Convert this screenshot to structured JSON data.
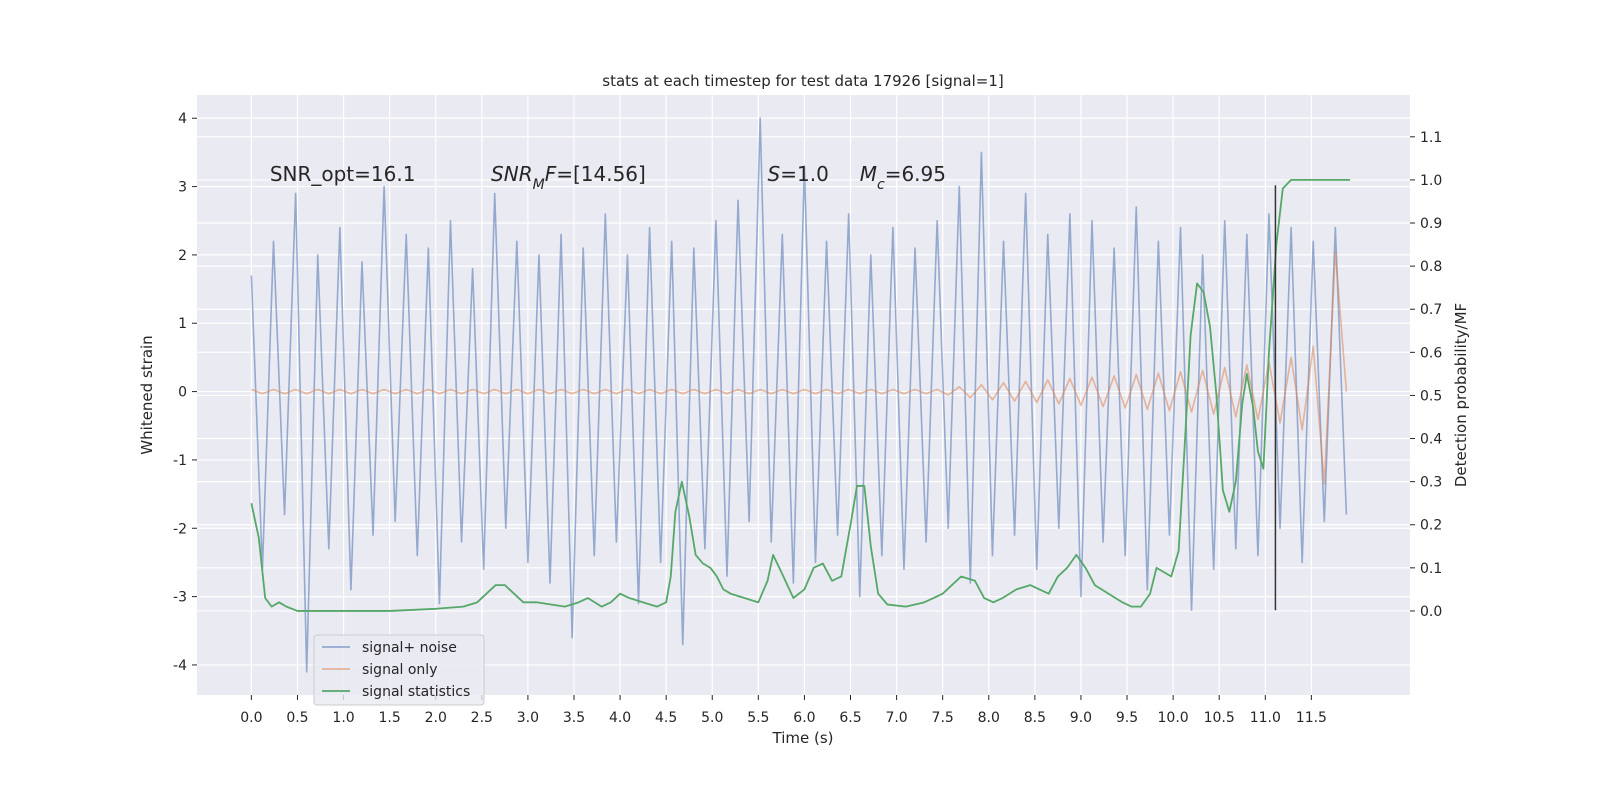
{
  "chart_data": {
    "type": "line",
    "title": "stats at each timestep for test data 17926 [signal=1]",
    "xlabel": "Time (s)",
    "ylabel": "Whitened strain",
    "y2label": "Detection probability/MF",
    "grid": true,
    "legend": "lower left",
    "xlim": [
      -0.59,
      12.57
    ],
    "ylim": [
      -4.44,
      4.34
    ],
    "y2lim": [
      -0.195,
      1.197
    ],
    "xticks": [
      {
        "value": 0,
        "label": "0.0"
      },
      {
        "value": 0.5,
        "label": "0.5"
      },
      {
        "value": 1,
        "label": "1.0"
      },
      {
        "value": 1.5,
        "label": "1.5"
      },
      {
        "value": 2,
        "label": "2.0"
      },
      {
        "value": 2.5,
        "label": "2.5"
      },
      {
        "value": 3,
        "label": "3.0"
      },
      {
        "value": 3.5,
        "label": "3.5"
      },
      {
        "value": 4,
        "label": "4.0"
      },
      {
        "value": 4.5,
        "label": "4.5"
      },
      {
        "value": 5,
        "label": "5.0"
      },
      {
        "value": 5.5,
        "label": "5.5"
      },
      {
        "value": 6,
        "label": "6.0"
      },
      {
        "value": 6.5,
        "label": "6.5"
      },
      {
        "value": 7,
        "label": "7.0"
      },
      {
        "value": 7.5,
        "label": "7.5"
      },
      {
        "value": 8,
        "label": "8.0"
      },
      {
        "value": 8.5,
        "label": "8.5"
      },
      {
        "value": 9,
        "label": "9.0"
      },
      {
        "value": 9.5,
        "label": "9.5"
      },
      {
        "value": 10,
        "label": "10.0"
      },
      {
        "value": 10.5,
        "label": "10.5"
      },
      {
        "value": 11,
        "label": "11.0"
      },
      {
        "value": 11.5,
        "label": "11.5"
      }
    ],
    "yticks": [
      -4,
      -3,
      -2,
      -1,
      0,
      1,
      2,
      3,
      4
    ],
    "y2ticks": [
      {
        "value": 0,
        "label": "0.0"
      },
      0.1,
      0.2,
      0.3,
      0.4,
      0.5,
      0.6,
      0.7,
      0.8,
      0.9,
      {
        "value": 1,
        "label": "1.0"
      },
      1.1
    ],
    "x": [
      0,
      0.12,
      0.24,
      0.36,
      0.48,
      0.6,
      0.72,
      0.84,
      0.96,
      1.08,
      1.2,
      1.32,
      1.44,
      1.56,
      1.68,
      1.8,
      1.92,
      2.04,
      2.16,
      2.28,
      2.4,
      2.52,
      2.64,
      2.76,
      2.88,
      3,
      3.12,
      3.24,
      3.36,
      3.48,
      3.6,
      3.72,
      3.84,
      3.96,
      4.08,
      4.2,
      4.32,
      4.44,
      4.56,
      4.68,
      4.8,
      4.92,
      5.04,
      5.16,
      5.28,
      5.4,
      5.52,
      5.64,
      5.76,
      5.88,
      6,
      6.12,
      6.24,
      6.36,
      6.48,
      6.6,
      6.72,
      6.84,
      6.96,
      7.08,
      7.2,
      7.32,
      7.44,
      7.56,
      7.68,
      7.8,
      7.92,
      8.04,
      8.16,
      8.28,
      8.4,
      8.52,
      8.64,
      8.76,
      8.88,
      9,
      9.12,
      9.24,
      9.36,
      9.48,
      9.6,
      9.72,
      9.84,
      9.96,
      10.08,
      10.2,
      10.32,
      10.44,
      10.56,
      10.68,
      10.8,
      10.92,
      11.04,
      11.16,
      11.28,
      11.4,
      11.52,
      11.64,
      11.76,
      11.88
    ],
    "series": [
      {
        "name": "signal+ noise",
        "color": "#4c72b0",
        "values": [
          1.7,
          -2.6,
          2.2,
          -1.8,
          2.9,
          -4.1,
          2.0,
          -2.3,
          2.4,
          -2.9,
          1.9,
          -2.1,
          3.0,
          -1.9,
          2.3,
          -2.4,
          2.1,
          -3.1,
          2.5,
          -2.2,
          1.8,
          -2.6,
          2.9,
          -2.0,
          2.2,
          -2.5,
          2.0,
          -2.8,
          2.3,
          -3.6,
          2.1,
          -2.4,
          2.6,
          -2.2,
          2.0,
          -3.1,
          2.4,
          -2.5,
          2.2,
          -3.7,
          2.1,
          -2.3,
          2.5,
          -2.7,
          2.8,
          -1.9,
          4.0,
          -2.2,
          2.3,
          -2.8,
          3.3,
          -2.5,
          2.2,
          -2.1,
          2.6,
          -3.0,
          2.0,
          -2.4,
          2.4,
          -2.6,
          2.1,
          -2.2,
          2.5,
          -2.0,
          3.0,
          -2.8,
          3.5,
          -2.4,
          2.2,
          -2.1,
          2.9,
          -2.6,
          2.3,
          -2.0,
          2.6,
          -3.0,
          2.5,
          -2.2,
          2.1,
          -2.4,
          2.7,
          -2.9,
          2.2,
          -2.1,
          2.4,
          -3.2,
          2.0,
          -2.6,
          2.5,
          -2.3,
          2.3,
          -2.4,
          2.6,
          -2.0,
          2.4,
          -2.5,
          2.2,
          -1.9,
          2.4,
          -1.8
        ]
      },
      {
        "name": "signal only",
        "color": "#dd8452",
        "values": [
          0.03,
          -0.03,
          0.03,
          -0.03,
          0.03,
          -0.03,
          0.03,
          -0.03,
          0.03,
          -0.03,
          0.03,
          -0.03,
          0.03,
          -0.03,
          0.03,
          -0.03,
          0.03,
          -0.03,
          0.03,
          -0.03,
          0.03,
          -0.03,
          0.03,
          -0.03,
          0.03,
          -0.03,
          0.03,
          -0.03,
          0.03,
          -0.03,
          0.03,
          -0.03,
          0.03,
          -0.03,
          0.03,
          -0.03,
          0.03,
          -0.03,
          0.03,
          -0.03,
          0.03,
          -0.03,
          0.03,
          -0.03,
          0.03,
          -0.03,
          0.03,
          -0.03,
          0.03,
          -0.03,
          0.03,
          -0.03,
          0.03,
          -0.03,
          0.03,
          -0.03,
          0.03,
          -0.03,
          0.03,
          -0.03,
          0.03,
          -0.03,
          0.03,
          -0.05,
          0.07,
          -0.09,
          0.1,
          -0.12,
          0.13,
          -0.14,
          0.15,
          -0.16,
          0.17,
          -0.18,
          0.19,
          -0.2,
          0.21,
          -0.22,
          0.23,
          -0.24,
          0.25,
          -0.26,
          0.27,
          -0.28,
          0.29,
          -0.3,
          0.31,
          -0.33,
          0.35,
          -0.37,
          0.39,
          -0.41,
          0.43,
          -0.46,
          0.5,
          -0.56,
          0.66,
          -1.35,
          2.05,
          0
        ]
      },
      {
        "name": "signal statistics",
        "color": "#55a868",
        "axis": "y2",
        "x": [
          0,
          0.08,
          0.15,
          0.22,
          0.3,
          0.38,
          0.5,
          0.7,
          1.0,
          1.5,
          2.0,
          2.3,
          2.45,
          2.55,
          2.65,
          2.75,
          2.85,
          2.95,
          3.1,
          3.4,
          3.55,
          3.65,
          3.8,
          3.9,
          4.0,
          4.1,
          4.25,
          4.4,
          4.5,
          4.55,
          4.6,
          4.67,
          4.75,
          4.82,
          4.9,
          4.98,
          5.05,
          5.12,
          5.2,
          5.35,
          5.5,
          5.6,
          5.66,
          5.75,
          5.88,
          6.0,
          6.1,
          6.2,
          6.3,
          6.4,
          6.5,
          6.57,
          6.65,
          6.72,
          6.8,
          6.9,
          7.1,
          7.3,
          7.4,
          7.5,
          7.7,
          7.85,
          7.95,
          8.05,
          8.15,
          8.3,
          8.45,
          8.55,
          8.65,
          8.75,
          8.85,
          8.95,
          9.05,
          9.15,
          9.3,
          9.45,
          9.55,
          9.65,
          9.75,
          9.82,
          9.9,
          9.98,
          10.06,
          10.13,
          10.19,
          10.26,
          10.33,
          10.4,
          10.47,
          10.54,
          10.61,
          10.68,
          10.75,
          10.8,
          10.87,
          10.92,
          10.98,
          11.04,
          11.12,
          11.19,
          11.28,
          11.5,
          11.92
        ],
        "values": [
          0.25,
          0.17,
          0.03,
          0.01,
          0.02,
          0.01,
          0.0,
          0.0,
          0.0,
          0.0,
          0.005,
          0.01,
          0.02,
          0.04,
          0.06,
          0.06,
          0.04,
          0.02,
          0.02,
          0.01,
          0.02,
          0.03,
          0.01,
          0.02,
          0.04,
          0.03,
          0.02,
          0.01,
          0.02,
          0.08,
          0.23,
          0.3,
          0.22,
          0.13,
          0.11,
          0.1,
          0.08,
          0.05,
          0.04,
          0.03,
          0.02,
          0.07,
          0.13,
          0.09,
          0.03,
          0.05,
          0.1,
          0.11,
          0.07,
          0.08,
          0.2,
          0.29,
          0.29,
          0.15,
          0.04,
          0.015,
          0.01,
          0.02,
          0.03,
          0.04,
          0.08,
          0.07,
          0.03,
          0.02,
          0.03,
          0.05,
          0.06,
          0.05,
          0.04,
          0.08,
          0.1,
          0.13,
          0.1,
          0.06,
          0.04,
          0.02,
          0.01,
          0.01,
          0.04,
          0.1,
          0.09,
          0.08,
          0.14,
          0.4,
          0.64,
          0.76,
          0.74,
          0.66,
          0.5,
          0.28,
          0.23,
          0.3,
          0.48,
          0.55,
          0.47,
          0.37,
          0.33,
          0.6,
          0.85,
          0.98,
          1.0,
          1.0,
          1.0
        ]
      }
    ],
    "vlines": [
      {
        "x": 11.11,
        "ymin": -3.2,
        "ymax": 3.02,
        "color": "#333333"
      }
    ],
    "annotations": [
      {
        "x": 0.2,
        "y": 3.08,
        "parts": [
          {
            "text": "SNR_opt=16.1",
            "style": "normal"
          }
        ]
      },
      {
        "x": 2.6,
        "y": 3.08,
        "parts": [
          {
            "text": "SNR",
            "style": "italic"
          },
          {
            "text": "M",
            "style": "sub"
          },
          {
            "text": "F",
            "style": "italic"
          },
          {
            "text": "=[14.56]",
            "style": "normal"
          }
        ]
      },
      {
        "x": 5.6,
        "y": 3.08,
        "parts": [
          {
            "text": "S",
            "style": "italic"
          },
          {
            "text": "=1.0",
            "style": "normal"
          }
        ]
      },
      {
        "x": 6.6,
        "y": 3.08,
        "parts": [
          {
            "text": "M",
            "style": "italic"
          },
          {
            "text": "c",
            "style": "sub"
          },
          {
            "text": "=6.95",
            "style": "normal"
          }
        ]
      }
    ]
  }
}
